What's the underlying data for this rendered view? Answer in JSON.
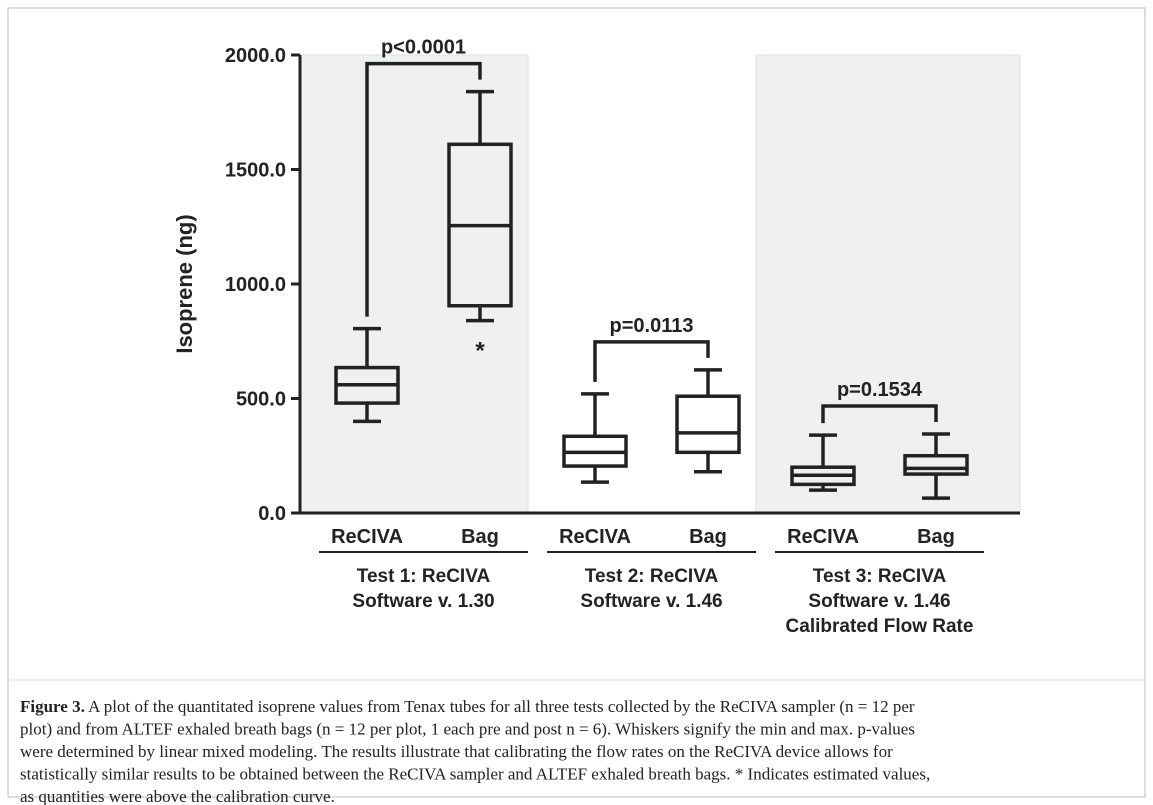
{
  "chart_data": {
    "type": "box",
    "y_label": "Isoprene (ng)",
    "ylim": [
      0,
      2000
    ],
    "yticks": [
      {
        "value": 0,
        "label": "0.0"
      },
      {
        "value": 500,
        "label": "500.0"
      },
      {
        "value": 1000,
        "label": "1000.0"
      },
      {
        "value": 1500,
        "label": "1500.0"
      },
      {
        "value": 2000,
        "label": "2000.0"
      }
    ],
    "categories": [
      "ReCIVA",
      "Bag",
      "ReCIVA",
      "Bag",
      "ReCIVA",
      "Bag"
    ],
    "boxes": [
      {
        "min": 400,
        "q1": 480,
        "median": 560,
        "q3": 635,
        "max": 805
      },
      {
        "min": 840,
        "q1": 905,
        "median": 1255,
        "q3": 1610,
        "max": 1840,
        "note": "*"
      },
      {
        "min": 135,
        "q1": 205,
        "median": 265,
        "q3": 335,
        "max": 520
      },
      {
        "min": 180,
        "q1": 265,
        "median": 350,
        "q3": 510,
        "max": 625
      },
      {
        "min": 100,
        "q1": 125,
        "median": 165,
        "q3": 200,
        "max": 340
      },
      {
        "min": 65,
        "q1": 170,
        "median": 195,
        "q3": 250,
        "max": 345
      }
    ],
    "groups": [
      {
        "label_lines": [
          "Test 1: ReCIVA",
          "Software v. 1.30"
        ],
        "p_value": "p<0.0001",
        "shaded": true
      },
      {
        "label_lines": [
          "Test 2: ReCIVA",
          "Software v. 1.46"
        ],
        "p_value": "p=0.0113",
        "shaded": false
      },
      {
        "label_lines": [
          "Test 3: ReCIVA",
          "Software v. 1.46",
          "Calibrated Flow Rate"
        ],
        "p_value": "p=0.1534",
        "shaded": true
      }
    ],
    "shade_color": "#eef1ef",
    "box_color": "#222222"
  },
  "caption": {
    "label": "Figure 3.",
    "lines": [
      " A plot of the quantitated isoprene values from Tenax tubes for all three tests collected by the ReCIVA sampler (n = 12 per",
      "plot) and from ALTEF exhaled breath bags (n = 12 per plot, 1 each pre and post n = 6). Whiskers signify the min and max. p-values",
      "were determined by linear mixed modeling. The results illustrate that calibrating the flow rates on the ReCIVA device allows for",
      "statistically similar results to be obtained between the ReCIVA sampler and ALTEF exhaled breath bags. * Indicates estimated values,",
      "as quantities were above the calibration curve."
    ]
  }
}
